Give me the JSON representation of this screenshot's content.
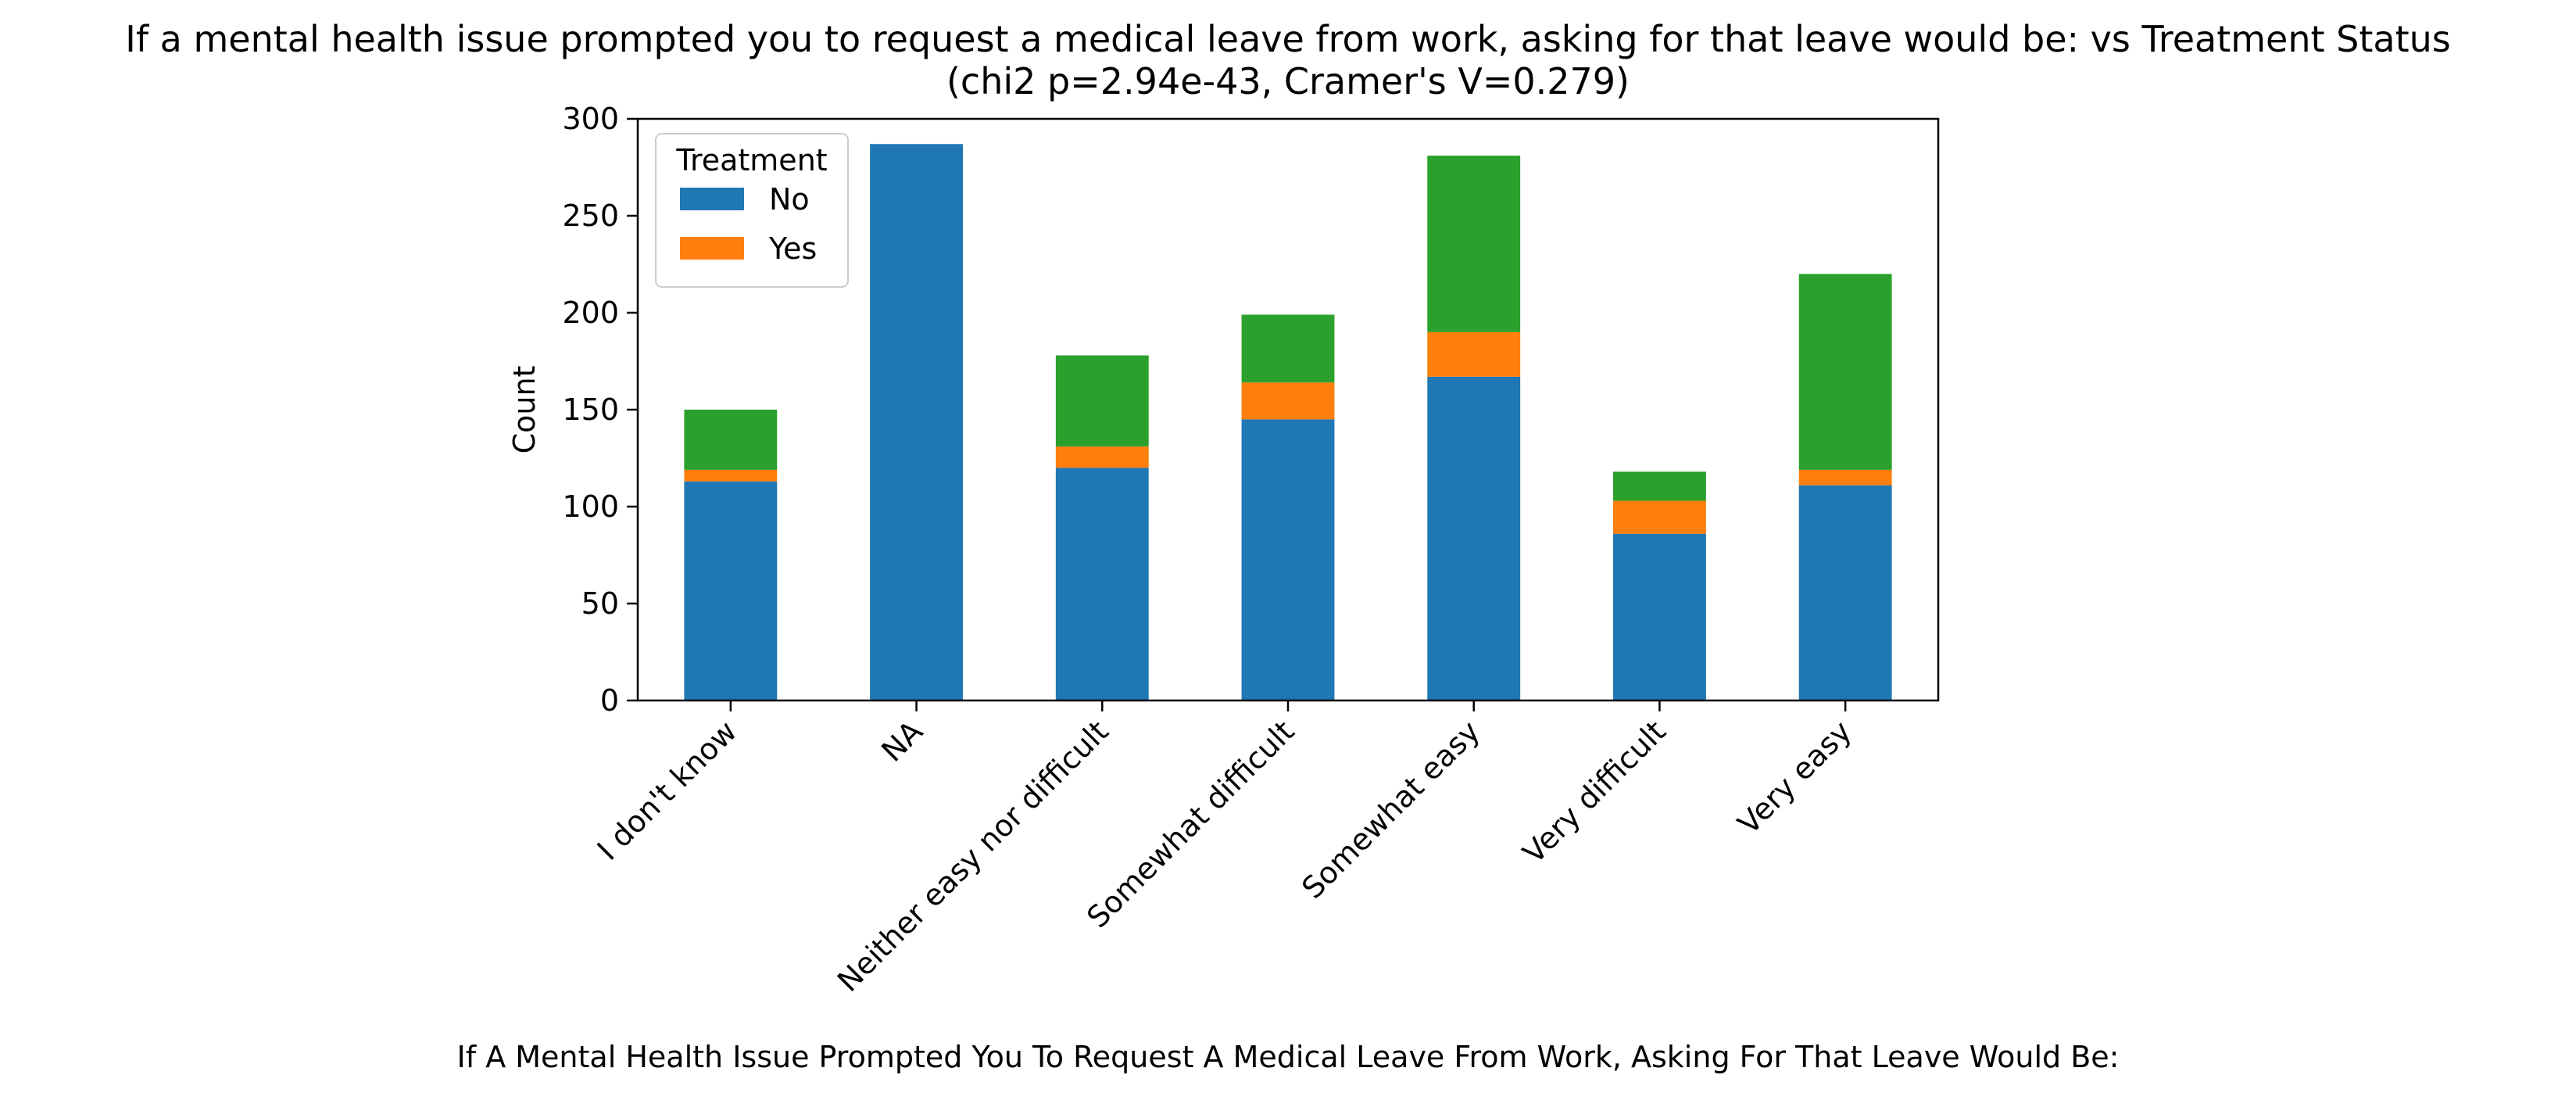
{
  "chart_data": {
    "type": "bar",
    "stacked": true,
    "title_line1": "If a mental health issue prompted you to request a medical leave from work, asking for that leave would be: vs Treatment Status",
    "title_line2": "(chi2 p=2.94e-43, Cramer's V=0.279)",
    "xlabel": "If A Mental Health Issue Prompted You To Request A Medical Leave From Work, Asking For That Leave Would Be:",
    "ylabel": "Count",
    "ylim": [
      0,
      300
    ],
    "yticks": [
      0,
      50,
      100,
      150,
      200,
      250,
      300
    ],
    "grid": false,
    "categories": [
      "I don't know",
      "NA",
      "Neither easy nor difficult",
      "Somewhat difficult",
      "Somewhat easy",
      "Very difficult",
      "Very easy"
    ],
    "series": [
      {
        "name": "No",
        "color": "#1f77b4",
        "values": [
          113,
          287,
          120,
          145,
          167,
          86,
          111
        ]
      },
      {
        "name": "Yes",
        "color": "#ff7f0e",
        "values": [
          6,
          0,
          11,
          19,
          23,
          17,
          8
        ]
      },
      {
        "color": "#2ca02c",
        "values": [
          31,
          0,
          47,
          35,
          91,
          15,
          101
        ]
      }
    ],
    "legend": {
      "title": "Treatment",
      "placement": "upper-left"
    }
  }
}
